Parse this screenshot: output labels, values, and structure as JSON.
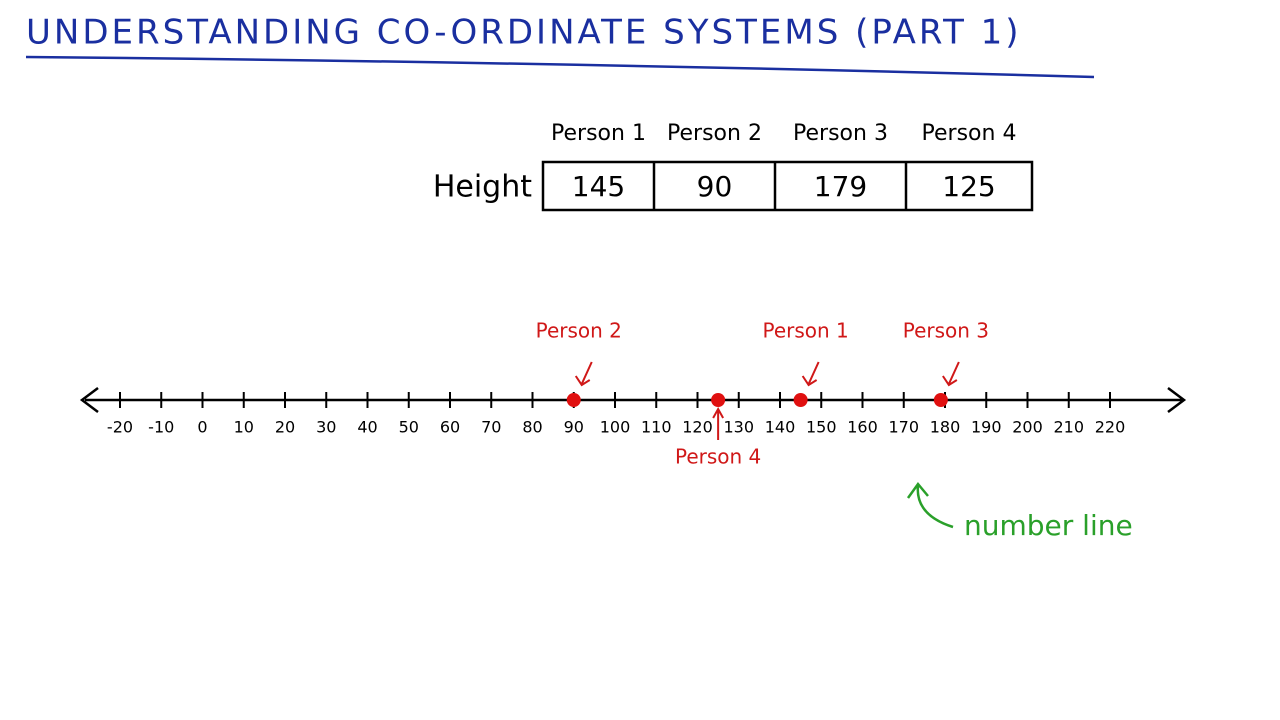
{
  "title": "UNDERSTANDING CO-ORDINATE SYSTEMS (PART 1)",
  "table": {
    "header": [
      "Person 1",
      "Person 2",
      "Person 3",
      "Person 4"
    ],
    "row_label": "Height",
    "values": [
      145,
      90,
      179,
      125
    ]
  },
  "number_line": {
    "ticks": [
      -20,
      -10,
      0,
      10,
      20,
      30,
      40,
      50,
      60,
      70,
      80,
      90,
      100,
      110,
      120,
      130,
      140,
      150,
      160,
      170,
      180,
      190,
      200,
      210,
      220
    ],
    "annotation": "number line"
  }
}
